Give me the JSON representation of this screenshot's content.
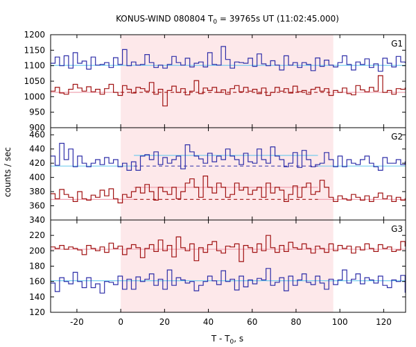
{
  "chart_data": {
    "type": "line",
    "title": {
      "prefix": "KONUS-WIND 080804 T",
      "prefix_sub": "0",
      "suffix": " = 39765s UT (11:02:45.000)"
    },
    "xlabel": {
      "main": "T - T",
      "sub": "0",
      "unit": ", s"
    },
    "ylabel": "counts / sec",
    "xlim": [
      -32,
      130
    ],
    "x_ticks": [
      -20,
      0,
      20,
      40,
      60,
      80,
      100,
      120
    ],
    "highlight_interval": {
      "x": [
        0,
        97
      ],
      "color": "#fde8ea"
    },
    "colors": {
      "blue": "#2d2da8",
      "red": "#a01010",
      "blue_bg": "#66c8ee",
      "red_bg": "#ee9aaa"
    },
    "panels": [
      {
        "label": "G1",
        "ylim": [
          900,
          1200
        ],
        "y_ticks": [
          900,
          950,
          1000,
          1050,
          1100,
          1150,
          1200
        ],
        "series": [
          {
            "name": "G1 blue",
            "color": "blue",
            "x_start": -32,
            "bin": 2.048,
            "values": [
              1108,
              1128,
              1100,
              1132,
              1092,
              1142,
              1108,
              1115,
              1089,
              1128,
              1102,
              1104,
              1110,
              1094,
              1126,
              1104,
              1152,
              1100,
              1112,
              1102,
              1104,
              1136,
              1110,
              1094,
              1102,
              1092,
              1104,
              1130,
              1110,
              1102,
              1124,
              1096,
              1108,
              1112,
              1096,
              1142,
              1104,
              1102,
              1162,
              1120,
              1092,
              1112,
              1110,
              1108,
              1124,
              1098,
              1138,
              1106,
              1100,
              1116,
              1102,
              1086,
              1132,
              1102,
              1110,
              1094,
              1110,
              1104,
              1084,
              1125,
              1098,
              1118,
              1102,
              1096,
              1110,
              1132,
              1104,
              1086,
              1112,
              1104,
              1122,
              1094,
              1106,
              1082,
              1124,
              1108,
              1096,
              1130,
              1112,
              1110
            ]
          },
          {
            "name": "G1 red",
            "color": "red",
            "x_start": -32,
            "bin": 2.048,
            "values": [
              1018,
              1030,
              1012,
              1008,
              1024,
              1040,
              1028,
              1018,
              1032,
              1016,
              1024,
              1008,
              1026,
              1040,
              1014,
              1004,
              1036,
              1024,
              1012,
              1030,
              1026,
              1018,
              1046,
              1008,
              1024,
              970,
              1020,
              1034,
              1014,
              1026,
              1006,
              1018,
              1052,
              1010,
              1028,
              1020,
              1030,
              1014,
              1022,
              1008,
              1026,
              1036,
              1016,
              1030,
              1018,
              1024,
              1010,
              1028,
              1004,
              1014,
              1030,
              1018,
              1026,
              1012,
              1034,
              1016,
              1020,
              1008,
              1024,
              1030,
              1018,
              1026,
              1004,
              1020,
              1014,
              1028,
              1010,
              1006,
              1036,
              1022,
              1016,
              1030,
              1018,
              1068,
              1014,
              1020,
              1008,
              1026,
              1024,
              1028
            ]
          }
        ],
        "backgrounds": [
          {
            "color": "blue_bg",
            "style": "solid",
            "segments": [
              [
                -32,
                130,
                1101
              ]
            ]
          },
          {
            "color": "red_bg",
            "style": "solid",
            "segments": [
              [
                -32,
                0,
                1014
              ],
              [
                97,
                130,
                1014
              ]
            ]
          },
          {
            "color": "red",
            "style": "dashed",
            "segments": [
              [
                0,
                97,
                1014
              ]
            ]
          }
        ]
      },
      {
        "label": "G2",
        "ylim": [
          340,
          470
        ],
        "y_ticks": [
          340,
          360,
          380,
          400,
          420,
          440,
          460
        ],
        "series": [
          {
            "name": "G2 blue",
            "color": "blue",
            "x_start": -32,
            "bin": 2.048,
            "values": [
              430,
              417,
              448,
              425,
              440,
              415,
              430,
              420,
              415,
              420,
              425,
              418,
              428,
              420,
              425,
              415,
              420,
              410,
              422,
              410,
              430,
              432,
              425,
              436,
              418,
              428,
              420,
              425,
              430,
              412,
              446,
              436,
              430,
              426,
              420,
              434,
              422,
              430,
              425,
              440,
              430,
              425,
              418,
              434,
              422,
              420,
              440,
              425,
              420,
              443,
              430,
              425,
              415,
              420,
              435,
              414,
              438,
              425,
              415,
              418,
              420,
              435,
              425,
              415,
              430,
              415,
              425,
              420,
              418,
              425,
              430,
              420,
              415,
              410,
              428,
              420,
              420,
              425,
              418,
              422
            ]
          },
          {
            "name": "G2 red",
            "color": "red",
            "x_start": -32,
            "bin": 2.048,
            "values": [
              377,
              370,
              383,
              376,
              372,
              366,
              380,
              370,
              368,
              375,
              372,
              382,
              374,
              384,
              370,
              364,
              376,
              372,
              380,
              386,
              378,
              390,
              380,
              368,
              386,
              380,
              376,
              386,
              370,
              380,
              392,
              398,
              386,
              372,
              402,
              386,
              378,
              392,
              386,
              372,
              376,
              392,
              382,
              386,
              376,
              382,
              386,
              372,
              392,
              378,
              386,
              382,
              366,
              376,
              388,
              372,
              386,
              392,
              376,
              380,
              396,
              386,
              372,
              366,
              374,
              370,
              368,
              376,
              372,
              368,
              374,
              366,
              372,
              378,
              370,
              374,
              366,
              372,
              368,
              370
            ]
          }
        ],
        "backgrounds": [
          {
            "color": "blue_bg",
            "style": "solid",
            "segments": [
              [
                -32,
                6,
                416
              ],
              [
                6,
                90,
                431
              ],
              [
                90,
                130,
                416
              ]
            ]
          },
          {
            "color": "blue",
            "style": "dashed",
            "segments": [
              [
                6,
                90,
                416
              ]
            ]
          },
          {
            "color": "red_bg",
            "style": "solid",
            "segments": [
              [
                -32,
                0,
                369
              ],
              [
                0,
                6,
                369
              ],
              [
                6,
                90,
                386
              ],
              [
                90,
                130,
                369
              ]
            ]
          },
          {
            "color": "red",
            "style": "dashed",
            "segments": [
              [
                6,
                90,
                369
              ]
            ]
          }
        ]
      },
      {
        "label": "G3",
        "ylim": [
          120,
          240
        ],
        "y_ticks": [
          120,
          140,
          160,
          180,
          200,
          220
        ],
        "series": [
          {
            "name": "G3 red",
            "color": "red",
            "x_start": -32,
            "bin": 2.048,
            "values": [
              205,
              203,
              207,
              202,
              205,
              203,
              201,
              195,
              207,
              203,
              200,
              205,
              198,
              210,
              203,
              206,
              195,
              203,
              208,
              204,
              191,
              203,
              208,
              199,
              214,
              200,
              207,
              192,
              218,
              204,
              200,
              209,
              187,
              204,
              198,
              208,
              212,
              200,
              197,
              206,
              205,
              209,
              186,
              207,
              204,
              198,
              209,
              200,
              220,
              204,
              198,
              207,
              199,
              211,
              204,
              202,
              209,
              203,
              197,
              206,
              203,
              198,
              209,
              200,
              207,
              203,
              206,
              197,
              205,
              201,
              209,
              203,
              199,
              208,
              203,
              205,
              199,
              201,
              212,
              206
            ]
          },
          {
            "name": "G3 blue",
            "color": "blue",
            "x_start": -32,
            "bin": 2.048,
            "values": [
              158,
              147,
              165,
              160,
              157,
              172,
              160,
              152,
              165,
              152,
              157,
              145,
              160,
              159,
              156,
              167,
              150,
              163,
              150,
              166,
              160,
              163,
              170,
              155,
              163,
              150,
              175,
              155,
              165,
              162,
              158,
              160,
              148,
              155,
              160,
              167,
              161,
              156,
              174,
              160,
              163,
              149,
              167,
              153,
              162,
              157,
              164,
              162,
              177,
              155,
              159,
              165,
              148,
              167,
              155,
              162,
              170,
              159,
              156,
              167,
              158,
              150,
              163,
              156,
              162,
              175,
              158,
              163,
              170,
              157,
              165,
              162,
              158,
              167,
              155,
              152,
              162,
              160,
              168,
              146
            ]
          }
        ],
        "backgrounds": [
          {
            "color": "red_bg",
            "style": "solid",
            "segments": [
              [
                -32,
                130,
                202
              ]
            ]
          },
          {
            "color": "blue_bg",
            "style": "solid",
            "segments": [
              [
                -32,
                130,
                161
              ]
            ]
          }
        ]
      }
    ]
  }
}
